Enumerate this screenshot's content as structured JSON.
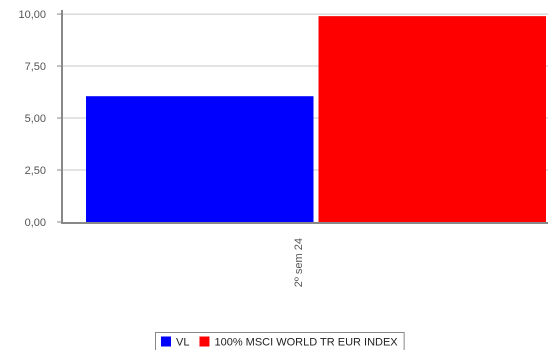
{
  "chart_data": {
    "type": "bar",
    "categories": [
      "2º sem  24"
    ],
    "series": [
      {
        "name": "VL",
        "values": [
          6.05
        ],
        "color": "#0000ff"
      },
      {
        "name": "100% MSCI WORLD TR EUR INDEX",
        "values": [
          9.9
        ],
        "color": "#ff0000"
      }
    ],
    "y_ticks": [
      "0,00",
      "2,50",
      "5,00",
      "7,50",
      "10,00"
    ],
    "y_tick_values": [
      0,
      2.5,
      5,
      7.5,
      10
    ],
    "ylim": [
      0,
      10.1
    ],
    "grid": true,
    "legend_position": "bottom-center",
    "title": "",
    "xlabel": "",
    "ylabel": ""
  }
}
